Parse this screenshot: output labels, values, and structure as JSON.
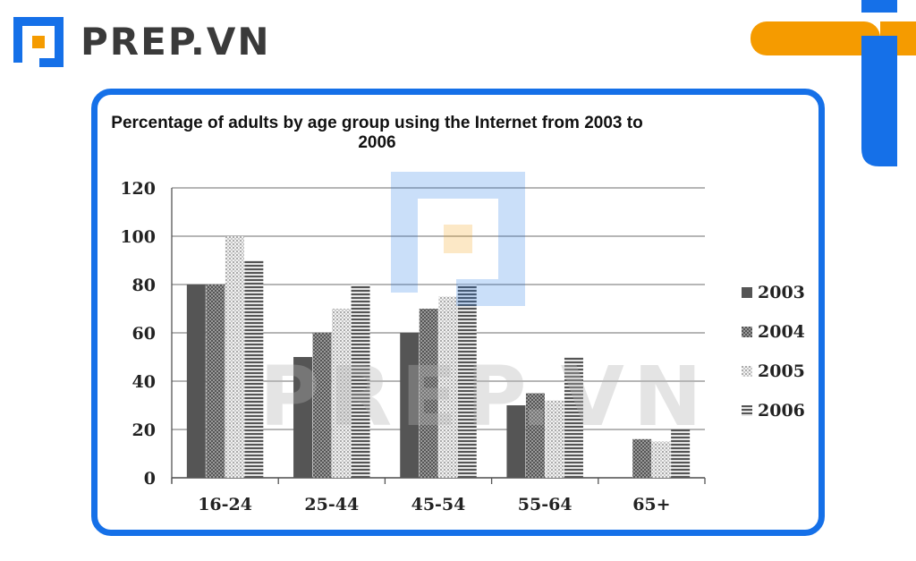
{
  "brand": {
    "name": "PREP.VN",
    "watermark": "PREP.VN",
    "primary": "#1570e8",
    "accent": "#f59b00"
  },
  "chart_data": {
    "type": "bar",
    "title": "Percentage of adults by age group using the Internet from 2003 to 2006",
    "categories": [
      "16-24",
      "25-44",
      "45-54",
      "55-64",
      "65+"
    ],
    "series": [
      {
        "name": "2003",
        "values": [
          80,
          50,
          60,
          30,
          0
        ],
        "color": "#555555",
        "pattern": "solid"
      },
      {
        "name": "2004",
        "values": [
          80,
          60,
          70,
          35,
          16
        ],
        "color": "#777777",
        "pattern": "checker"
      },
      {
        "name": "2005",
        "values": [
          100,
          70,
          75,
          32,
          15
        ],
        "color": "#d5d5d5",
        "pattern": "dots"
      },
      {
        "name": "2006",
        "values": [
          90,
          80,
          80,
          50,
          20
        ],
        "color": "#666666",
        "pattern": "hlines"
      }
    ],
    "ylim": [
      0,
      120
    ],
    "yticks": [
      0,
      20,
      40,
      60,
      80,
      100,
      120
    ],
    "xlabel": "",
    "ylabel": "",
    "grid": true,
    "legend_position": "right"
  }
}
